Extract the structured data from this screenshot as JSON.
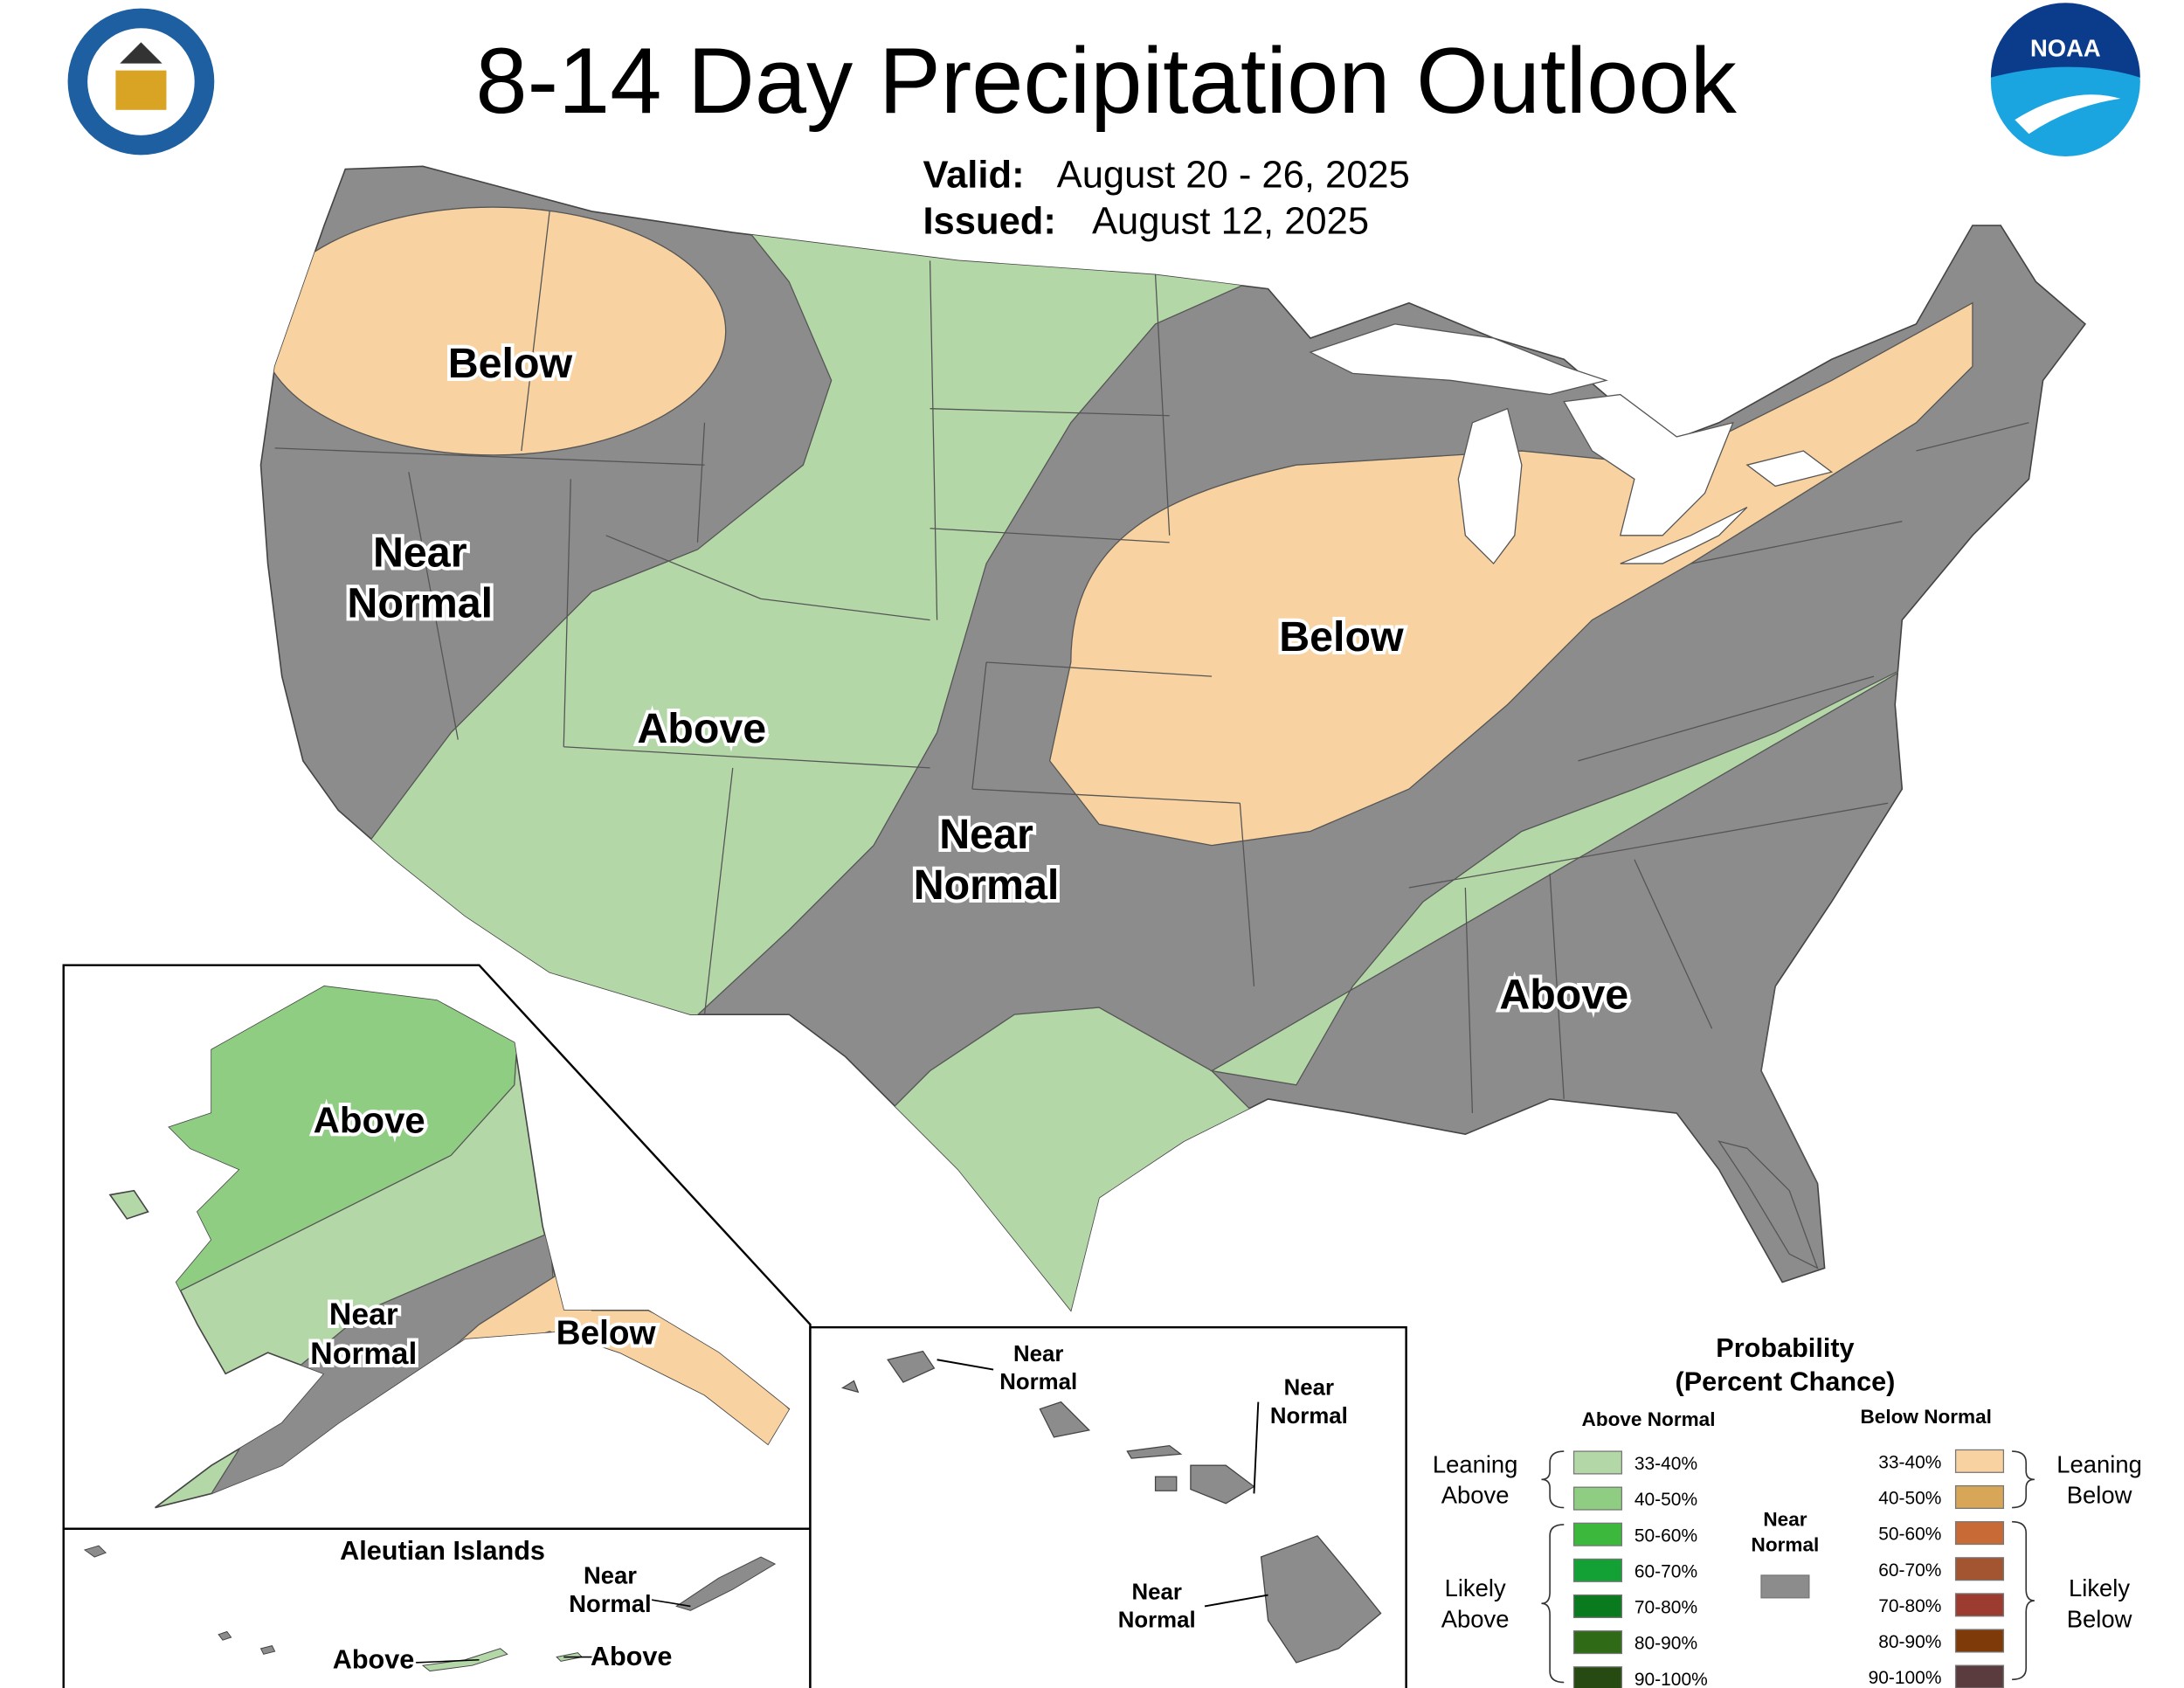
{
  "title": "8-14 Day Precipitation Outlook",
  "valid": {
    "label": "Valid:",
    "date": "August 20 - 26, 2025"
  },
  "issued": {
    "label": "Issued:",
    "date": "August 12, 2025"
  },
  "logos": {
    "noaa": "NOAA"
  },
  "conus_labels": [
    {
      "lines": [
        "Below"
      ]
    },
    {
      "lines": [
        "Near",
        "Normal"
      ]
    },
    {
      "lines": [
        "Above"
      ]
    },
    {
      "lines": [
        "Near",
        "Normal"
      ]
    },
    {
      "lines": [
        "Below"
      ]
    },
    {
      "lines": [
        "Above"
      ]
    }
  ],
  "alaska_labels": [
    {
      "lines": [
        "Above"
      ]
    },
    {
      "lines": [
        "Near",
        "Normal"
      ]
    },
    {
      "lines": [
        "Below"
      ]
    }
  ],
  "aleutian": {
    "title": "Aleutian Islands",
    "labels": [
      {
        "lines": [
          "Near",
          "Normal"
        ]
      },
      {
        "lines": [
          "Above"
        ]
      },
      {
        "lines": [
          "Above"
        ]
      }
    ]
  },
  "hawaii_labels": [
    {
      "lines": [
        "Near",
        "Normal"
      ]
    },
    {
      "lines": [
        "Near",
        "Normal"
      ]
    },
    {
      "lines": [
        "Near",
        "Normal"
      ]
    }
  ],
  "legend": {
    "title": [
      "Probability",
      "(Percent Chance)"
    ],
    "above_header": "Above Normal",
    "below_header": "Below Normal",
    "above": [
      {
        "label": "33-40%",
        "color": "#b4d7a8"
      },
      {
        "label": "40-50%",
        "color": "#8fce82"
      },
      {
        "label": "50-60%",
        "color": "#3cb93c"
      },
      {
        "label": "60-70%",
        "color": "#13a135"
      },
      {
        "label": "70-80%",
        "color": "#0a7a1e"
      },
      {
        "label": "80-90%",
        "color": "#2f6a16"
      },
      {
        "label": "90-100%",
        "color": "#274a12"
      }
    ],
    "below": [
      {
        "label": "33-40%",
        "color": "#f8d2a0"
      },
      {
        "label": "40-50%",
        "color": "#d8a658"
      },
      {
        "label": "50-60%",
        "color": "#c86a36"
      },
      {
        "label": "60-70%",
        "color": "#a35431"
      },
      {
        "label": "70-80%",
        "color": "#9c3b2f"
      },
      {
        "label": "80-90%",
        "color": "#7f3a0a"
      },
      {
        "label": "90-100%",
        "color": "#5a3c3e"
      }
    ],
    "near": {
      "lines": [
        "Near",
        "Normal"
      ],
      "color": "#8c8c8c"
    },
    "leaning_above": [
      "Leaning",
      "Above"
    ],
    "likely_above": [
      "Likely",
      "Above"
    ],
    "leaning_below": [
      "Leaning",
      "Below"
    ],
    "likely_below": [
      "Likely",
      "Below"
    ]
  }
}
